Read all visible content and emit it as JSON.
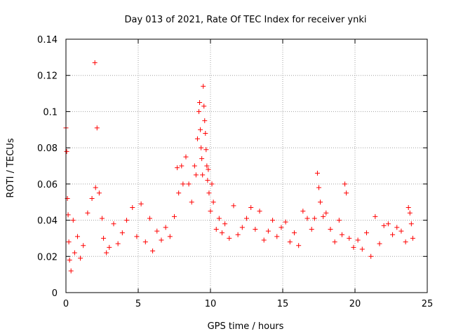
{
  "chart_data": {
    "type": "scatter",
    "title": "Day 013 of 2021, Rate Of TEC Index for receiver ynki",
    "xlabel": "GPS time / hours",
    "ylabel": "ROTI / TECUs",
    "xlim": [
      0,
      25
    ],
    "ylim": [
      0,
      0.14
    ],
    "xticks": [
      0,
      5,
      10,
      15,
      20,
      25
    ],
    "xtick_labels": [
      "0",
      "5",
      "10",
      "15",
      "20",
      "25"
    ],
    "yticks": [
      0,
      0.02,
      0.04,
      0.06,
      0.08,
      0.1,
      0.12,
      0.14
    ],
    "ytick_labels": [
      "0",
      "0.02",
      "0.04",
      "0.06",
      "0.08",
      "0.1",
      "0.12",
      "0.14"
    ],
    "grid": true,
    "marker": "plus",
    "color": "#ff0000",
    "series": [
      {
        "name": "ROTI",
        "x": [
          0.0,
          0.05,
          0.1,
          0.15,
          0.2,
          0.25,
          0.35,
          0.5,
          0.6,
          0.8,
          1.0,
          1.2,
          1.5,
          1.8,
          2.0,
          2.05,
          2.15,
          2.3,
          2.5,
          2.6,
          2.8,
          3.0,
          3.3,
          3.6,
          3.9,
          4.2,
          4.6,
          4.9,
          5.2,
          5.5,
          5.8,
          6.0,
          6.3,
          6.6,
          6.9,
          7.2,
          7.5,
          7.7,
          7.8,
          8.0,
          8.1,
          8.3,
          8.5,
          8.7,
          8.9,
          9.0,
          9.1,
          9.2,
          9.25,
          9.3,
          9.35,
          9.4,
          9.45,
          9.5,
          9.55,
          9.6,
          9.65,
          9.7,
          9.75,
          9.8,
          9.85,
          9.9,
          10.0,
          10.1,
          10.2,
          10.4,
          10.6,
          10.8,
          11.0,
          11.3,
          11.6,
          11.9,
          12.2,
          12.5,
          12.8,
          13.1,
          13.4,
          13.7,
          14.0,
          14.3,
          14.6,
          14.9,
          15.2,
          15.5,
          15.8,
          16.1,
          16.4,
          16.7,
          17.0,
          17.2,
          17.4,
          17.5,
          17.6,
          17.8,
          18.0,
          18.3,
          18.6,
          18.9,
          19.1,
          19.3,
          19.4,
          19.6,
          19.9,
          20.2,
          20.5,
          20.8,
          21.1,
          21.4,
          21.7,
          22.0,
          22.3,
          22.6,
          22.9,
          23.2,
          23.5,
          23.7,
          23.8,
          23.9,
          24.0
        ],
        "y": [
          0.091,
          0.078,
          0.052,
          0.043,
          0.028,
          0.018,
          0.012,
          0.04,
          0.022,
          0.031,
          0.019,
          0.026,
          0.044,
          0.052,
          0.127,
          0.058,
          0.091,
          0.055,
          0.041,
          0.03,
          0.022,
          0.025,
          0.038,
          0.027,
          0.033,
          0.04,
          0.047,
          0.031,
          0.049,
          0.028,
          0.041,
          0.023,
          0.034,
          0.029,
          0.036,
          0.031,
          0.042,
          0.069,
          0.055,
          0.07,
          0.06,
          0.075,
          0.06,
          0.05,
          0.07,
          0.065,
          0.085,
          0.1,
          0.105,
          0.09,
          0.08,
          0.074,
          0.065,
          0.114,
          0.103,
          0.095,
          0.088,
          0.079,
          0.07,
          0.062,
          0.068,
          0.055,
          0.045,
          0.06,
          0.05,
          0.035,
          0.041,
          0.033,
          0.038,
          0.03,
          0.048,
          0.032,
          0.036,
          0.041,
          0.047,
          0.035,
          0.045,
          0.029,
          0.034,
          0.04,
          0.031,
          0.036,
          0.039,
          0.028,
          0.033,
          0.026,
          0.045,
          0.041,
          0.035,
          0.041,
          0.066,
          0.058,
          0.05,
          0.042,
          0.044,
          0.035,
          0.028,
          0.04,
          0.032,
          0.06,
          0.055,
          0.03,
          0.025,
          0.029,
          0.024,
          0.033,
          0.02,
          0.042,
          0.027,
          0.037,
          0.038,
          0.032,
          0.036,
          0.034,
          0.028,
          0.047,
          0.044,
          0.038,
          0.03
        ]
      }
    ]
  }
}
